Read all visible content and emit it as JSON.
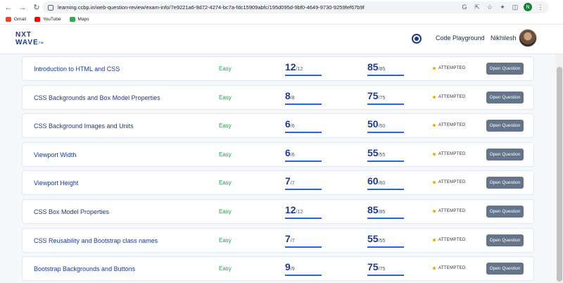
{
  "browser": {
    "url": "learning.ccbp.in/web-question-review/exam-info/7e9221a6-9d72-4274-bc7a-fdc15909abfc/195d095d-9bf0-4649-9730-9259fef67b9f",
    "profile_initial": "N",
    "bookmarks": [
      {
        "label": "Gmail",
        "color": "#ea4335"
      },
      {
        "label": "YouTube",
        "color": "#ff0000"
      },
      {
        "label": "Maps",
        "color": "#34a853"
      }
    ]
  },
  "header": {
    "logo_line1": "NXT",
    "logo_line2": "WAVE",
    "logo_tm": "TM",
    "code_playground": "Code Playground",
    "username": "Nikhilesh"
  },
  "questions": [
    {
      "title": "Introduction to HTML and CSS",
      "difficulty": "Easy",
      "score1": "12",
      "total1": "/12",
      "score2": "85",
      "total2": "/85",
      "status": "ATTEMPTED",
      "button": "Open Question"
    },
    {
      "title": "CSS Backgrounds and Box Model Properties",
      "difficulty": "Easy",
      "score1": "8",
      "total1": "/8",
      "score2": "75",
      "total2": "/75",
      "status": "ATTEMPTED",
      "button": "Open Question"
    },
    {
      "title": "CSS Background Images and Units",
      "difficulty": "Easy",
      "score1": "6",
      "total1": "/6",
      "score2": "50",
      "total2": "/50",
      "status": "ATTEMPTED",
      "button": "Open Question"
    },
    {
      "title": "Viewport Width",
      "difficulty": "Easy",
      "score1": "6",
      "total1": "/6",
      "score2": "55",
      "total2": "/55",
      "status": "ATTEMPTED",
      "button": "Open Question"
    },
    {
      "title": "Viewport Height",
      "difficulty": "Easy",
      "score1": "7",
      "total1": "/7",
      "score2": "60",
      "total2": "/60",
      "status": "ATTEMPTED",
      "button": "Open Question"
    },
    {
      "title": "CSS Box Model Properties",
      "difficulty": "Easy",
      "score1": "12",
      "total1": "/12",
      "score2": "85",
      "total2": "/85",
      "status": "ATTEMPTED",
      "button": "Open Question"
    },
    {
      "title": "CSS Reusability and Bootstrap class names",
      "difficulty": "Easy",
      "score1": "7",
      "total1": "/7",
      "score2": "55",
      "total2": "/55",
      "status": "ATTEMPTED",
      "button": "Open Question"
    },
    {
      "title": "Bootstrap Backgrounds and Buttons",
      "difficulty": "Easy",
      "score1": "9",
      "total1": "/9",
      "score2": "75",
      "total2": "/75",
      "status": "ATTEMPTED",
      "button": "Open Question"
    }
  ]
}
